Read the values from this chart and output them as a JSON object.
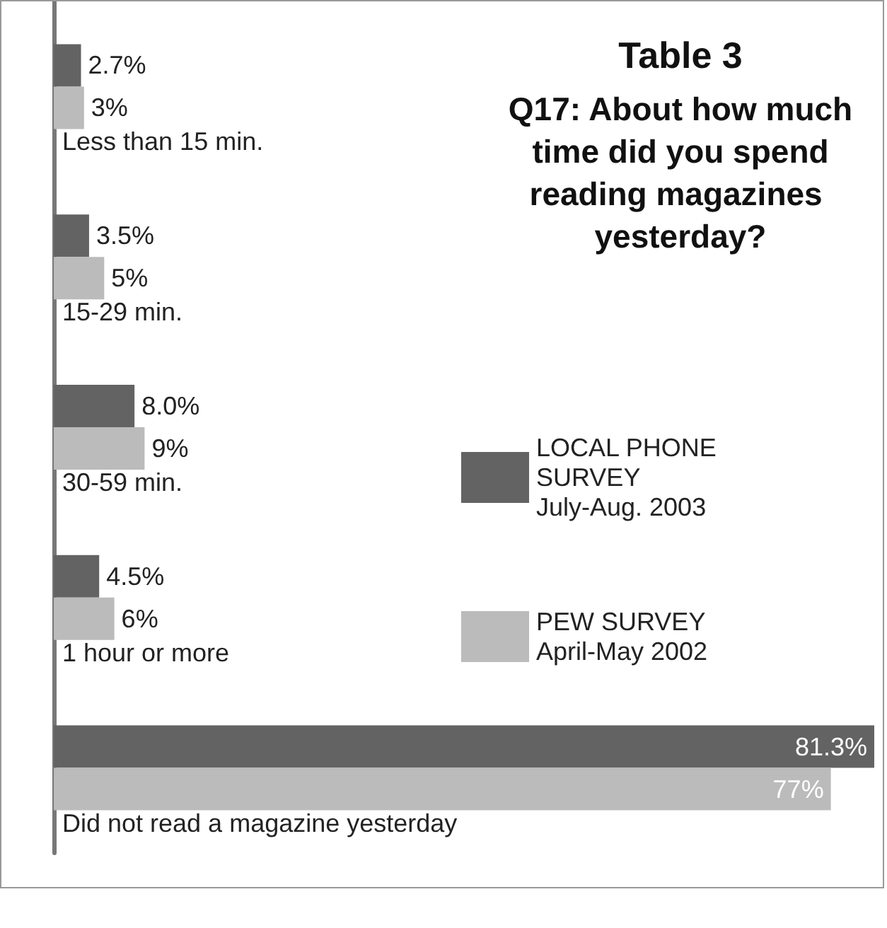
{
  "chart_data": {
    "type": "bar",
    "orientation": "horizontal",
    "title": "Table 3",
    "subtitle": "Q17: About how much time did you spend reading magazines yesterday?",
    "categories": [
      "Less than 15 min.",
      "15-29 min.",
      "30-59 min.",
      "1 hour or more",
      "Did not read a magazine yesterday"
    ],
    "series": [
      {
        "name": "LOCAL PHONE SURVEY July-Aug. 2003",
        "color": "#636363",
        "values": [
          2.7,
          3.5,
          8.0,
          4.5,
          81.3
        ],
        "value_labels": [
          "2.7%",
          "3.5%",
          "8.0%",
          "4.5%",
          "81.3%"
        ]
      },
      {
        "name": "PEW SURVEY April-May 2002",
        "color": "#bbbbbb",
        "values": [
          3,
          5,
          9,
          6,
          77
        ],
        "value_labels": [
          "3%",
          "5%",
          "9%",
          "6%",
          "77%"
        ]
      }
    ],
    "legend": "right",
    "tick_labels": "y"
  }
}
